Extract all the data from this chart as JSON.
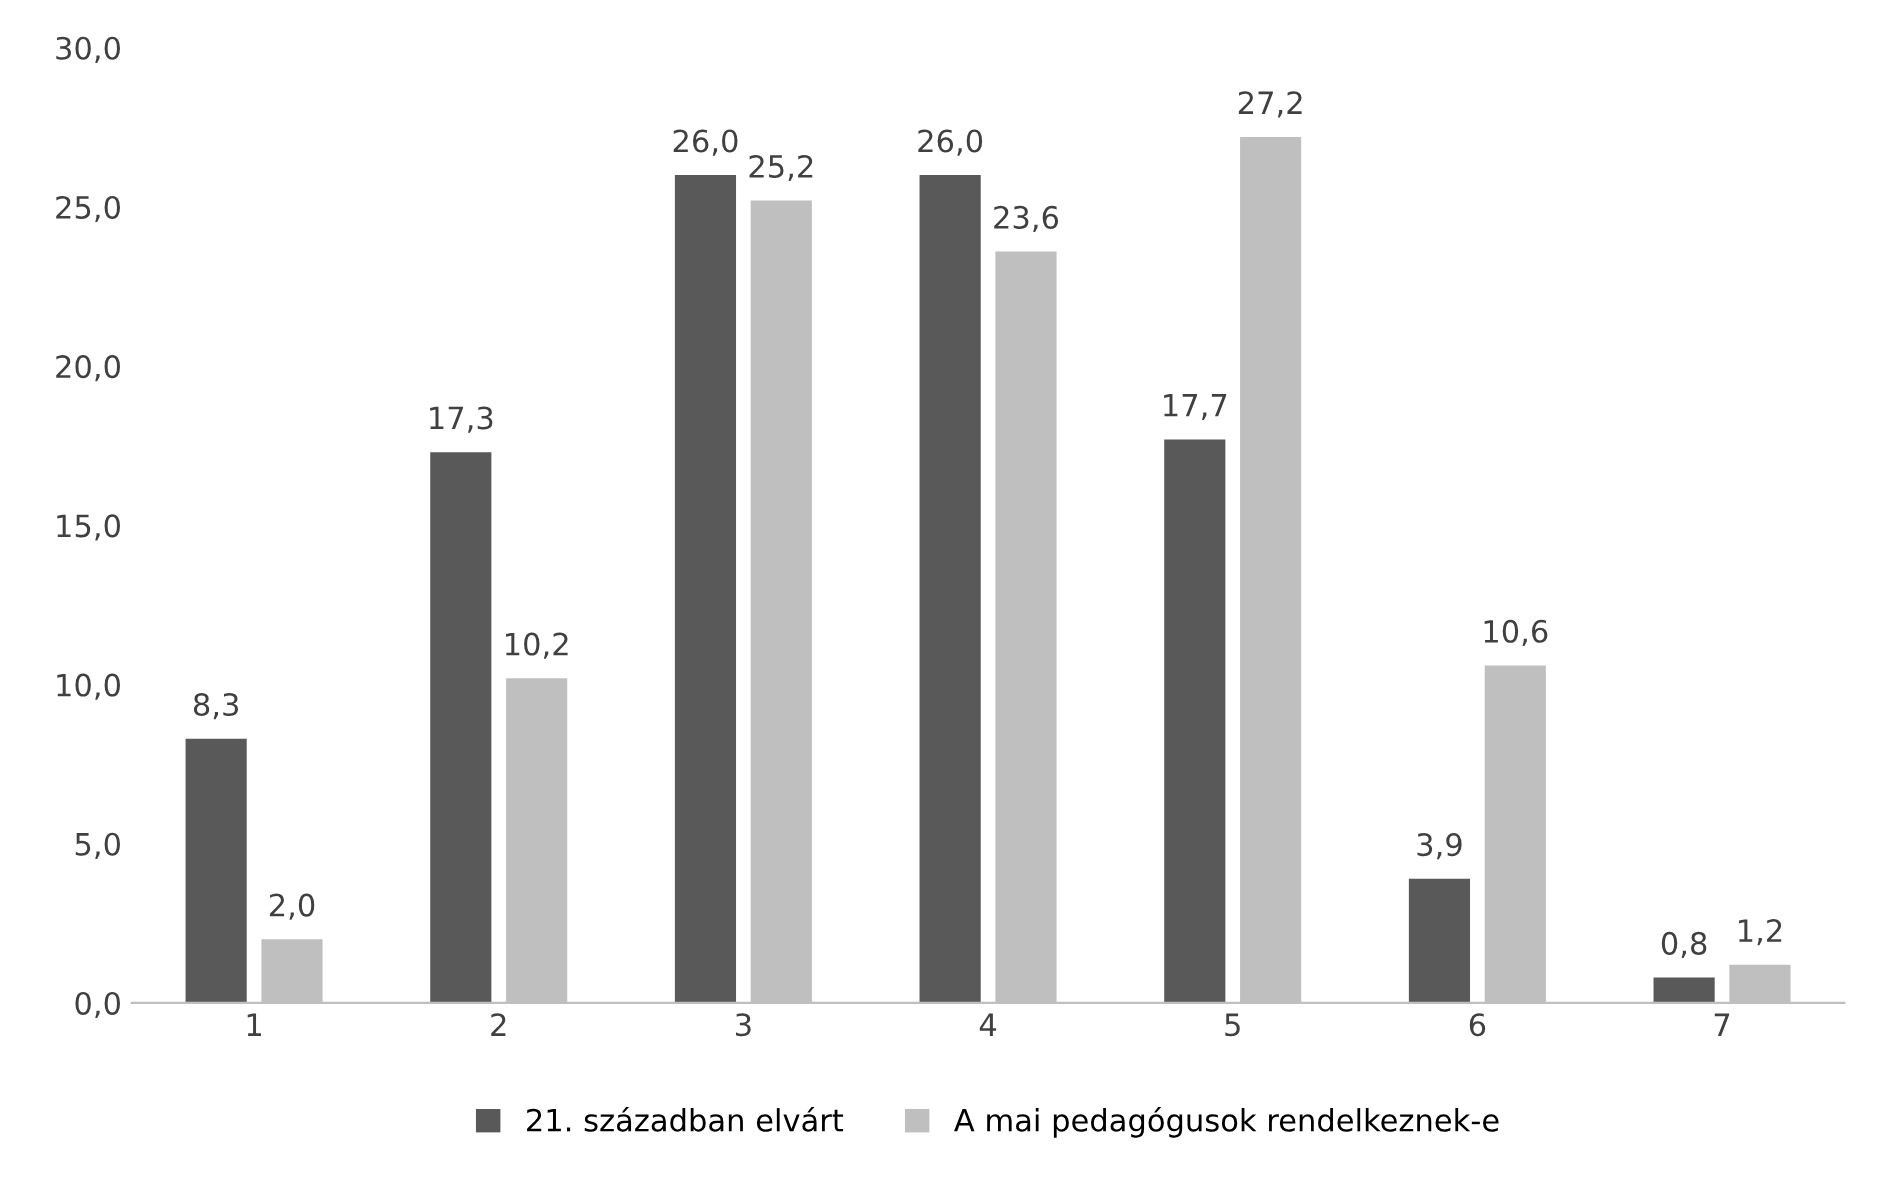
{
  "chart_data": {
    "type": "bar",
    "categories": [
      "1",
      "2",
      "3",
      "4",
      "5",
      "6",
      "7"
    ],
    "series": [
      {
        "name": "21. században elvárt",
        "color": "#595959",
        "values": [
          8.3,
          17.3,
          26.0,
          26.0,
          17.7,
          3.9,
          0.8
        ],
        "value_labels": [
          "8,3",
          "17,3",
          "26,0",
          "26,0",
          "17,7",
          "3,9",
          "0,8"
        ]
      },
      {
        "name": "A mai pedagógusok rendelkeznek-e",
        "color": "#bfbfbf",
        "values": [
          2.0,
          10.2,
          25.2,
          23.6,
          27.2,
          10.6,
          1.2
        ],
        "value_labels": [
          "2,0",
          "10,2",
          "25,2",
          "23,6",
          "27,2",
          "10,6",
          "1,2"
        ]
      }
    ],
    "ylim": [
      0,
      30
    ],
    "yticks": [
      {
        "value": 0,
        "label": "0,0"
      },
      {
        "value": 5,
        "label": "5,0"
      },
      {
        "value": 10,
        "label": "10,0"
      },
      {
        "value": 15,
        "label": "15,0"
      },
      {
        "value": 20,
        "label": "20,0"
      },
      {
        "value": 25,
        "label": "25,0"
      },
      {
        "value": 30,
        "label": "30,0"
      }
    ],
    "grid": false,
    "legend": "bottom"
  }
}
